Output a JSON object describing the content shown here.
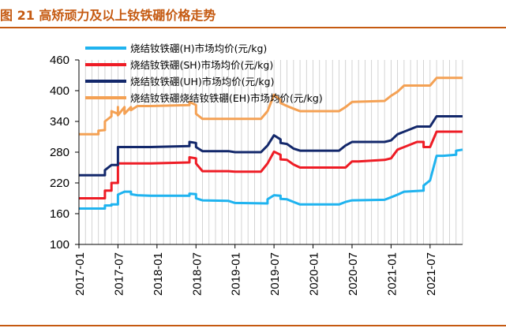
{
  "header": {
    "title": "图 21 高矫顽力及以上钕铁硼价格走势"
  },
  "chart_data": {
    "type": "line",
    "title": "图 21 高矫顽力及以上钕铁硼价格走势",
    "xlabel": "",
    "ylabel": "",
    "ylim": [
      100,
      460
    ],
    "yticks": [
      100,
      160,
      220,
      280,
      340,
      400,
      460
    ],
    "xlim": [
      "2017-01",
      "2021-12"
    ],
    "xticks": [
      "2017-01",
      "2017-07",
      "2018-01",
      "2018-07",
      "2019-01",
      "2019-07",
      "2020-01",
      "2020-07",
      "2021-01",
      "2021-07"
    ],
    "grid": "vertical",
    "legend_position": "top-left",
    "series": [
      {
        "name": "烧结钕铁硼(H)市场均价(元/kg)",
        "color": "#1fb3ef",
        "points": [
          [
            "2017-01",
            170
          ],
          [
            "2017-05",
            170
          ],
          [
            "2017-05",
            176
          ],
          [
            "2017-06",
            176
          ],
          [
            "2017-06",
            178
          ],
          [
            "2017-07",
            178
          ],
          [
            "2017-07",
            197
          ],
          [
            "2017-08",
            203
          ],
          [
            "2017-09",
            203
          ],
          [
            "2017-09",
            198
          ],
          [
            "2017-10",
            196
          ],
          [
            "2017-12",
            195
          ],
          [
            "2018-06",
            195
          ],
          [
            "2018-06",
            199
          ],
          [
            "2018-07",
            198
          ],
          [
            "2018-07",
            190
          ],
          [
            "2018-08",
            186
          ],
          [
            "2018-12",
            185
          ],
          [
            "2019-01",
            181
          ],
          [
            "2019-06",
            180
          ],
          [
            "2019-06",
            188
          ],
          [
            "2019-07",
            196
          ],
          [
            "2019-08",
            195
          ],
          [
            "2019-08",
            189
          ],
          [
            "2019-09",
            188
          ],
          [
            "2019-10",
            183
          ],
          [
            "2019-11",
            178
          ],
          [
            "2020-05",
            178
          ],
          [
            "2020-06",
            183
          ],
          [
            "2020-07",
            186
          ],
          [
            "2020-12",
            187
          ],
          [
            "2021-01",
            192
          ],
          [
            "2021-02",
            197
          ],
          [
            "2021-03",
            203
          ],
          [
            "2021-06",
            205
          ],
          [
            "2021-06",
            215
          ],
          [
            "2021-07",
            225
          ],
          [
            "2021-08",
            273
          ],
          [
            "2021-09",
            273
          ],
          [
            "2021-11",
            275
          ],
          [
            "2021-11",
            283
          ],
          [
            "2021-12",
            285
          ]
        ]
      },
      {
        "name": "烧结钕铁硼(SH)市场均价(元/kg)",
        "color": "#ee1c25",
        "points": [
          [
            "2017-01",
            190
          ],
          [
            "2017-05",
            190
          ],
          [
            "2017-05",
            205
          ],
          [
            "2017-06",
            205
          ],
          [
            "2017-06",
            220
          ],
          [
            "2017-07",
            220
          ],
          [
            "2017-07",
            258
          ],
          [
            "2017-09",
            258
          ],
          [
            "2017-12",
            258
          ],
          [
            "2018-06",
            260
          ],
          [
            "2018-06",
            270
          ],
          [
            "2018-07",
            268
          ],
          [
            "2018-07",
            258
          ],
          [
            "2018-08",
            243
          ],
          [
            "2018-12",
            243
          ],
          [
            "2019-01",
            242
          ],
          [
            "2019-05",
            242
          ],
          [
            "2019-06",
            258
          ],
          [
            "2019-07",
            281
          ],
          [
            "2019-08",
            275
          ],
          [
            "2019-08",
            266
          ],
          [
            "2019-09",
            265
          ],
          [
            "2019-10",
            256
          ],
          [
            "2019-11",
            250
          ],
          [
            "2020-06",
            250
          ],
          [
            "2020-07",
            262
          ],
          [
            "2020-08",
            262
          ],
          [
            "2020-12",
            265
          ],
          [
            "2021-01",
            268
          ],
          [
            "2021-02",
            285
          ],
          [
            "2021-05",
            300
          ],
          [
            "2021-06",
            300
          ],
          [
            "2021-06",
            290
          ],
          [
            "2021-07",
            290
          ],
          [
            "2021-08",
            320
          ],
          [
            "2021-12",
            320
          ]
        ]
      },
      {
        "name": "烧结钕铁硼(UH)市场均价(元/kg)",
        "color": "#13286b",
        "points": [
          [
            "2017-01",
            235
          ],
          [
            "2017-05",
            235
          ],
          [
            "2017-05",
            245
          ],
          [
            "2017-06",
            255
          ],
          [
            "2017-07",
            255
          ],
          [
            "2017-07",
            290
          ],
          [
            "2017-12",
            290
          ],
          [
            "2018-06",
            292
          ],
          [
            "2018-06",
            300
          ],
          [
            "2018-07",
            298
          ],
          [
            "2018-07",
            290
          ],
          [
            "2018-08",
            282
          ],
          [
            "2018-12",
            282
          ],
          [
            "2019-01",
            280
          ],
          [
            "2019-05",
            280
          ],
          [
            "2019-06",
            293
          ],
          [
            "2019-07",
            313
          ],
          [
            "2019-08",
            305
          ],
          [
            "2019-08",
            298
          ],
          [
            "2019-09",
            296
          ],
          [
            "2019-10",
            287
          ],
          [
            "2019-11",
            283
          ],
          [
            "2020-05",
            283
          ],
          [
            "2020-06",
            293
          ],
          [
            "2020-07",
            300
          ],
          [
            "2020-12",
            300
          ],
          [
            "2021-01",
            303
          ],
          [
            "2021-02",
            315
          ],
          [
            "2021-05",
            330
          ],
          [
            "2021-07",
            330
          ],
          [
            "2021-08",
            350
          ],
          [
            "2021-12",
            350
          ]
        ]
      },
      {
        "name": "烧结钕铁硼烧结钕铁硼(EH)市场均价(元/kg)",
        "color": "#f4a154",
        "points": [
          [
            "2017-01",
            315
          ],
          [
            "2017-04",
            315
          ],
          [
            "2017-04",
            322
          ],
          [
            "2017-05",
            323
          ],
          [
            "2017-05",
            332
          ],
          [
            "2017-05",
            340
          ],
          [
            "2017-06",
            350
          ],
          [
            "2017-06",
            360
          ],
          [
            "2017-07",
            355
          ],
          [
            "2017-07",
            368
          ],
          [
            "2017-07",
            352
          ],
          [
            "2017-08",
            368
          ],
          [
            "2017-08",
            355
          ],
          [
            "2017-09",
            368
          ],
          [
            "2017-09",
            362
          ],
          [
            "2017-10",
            370
          ],
          [
            "2017-12",
            370
          ],
          [
            "2018-06",
            372
          ],
          [
            "2018-06",
            378
          ],
          [
            "2018-07",
            372
          ],
          [
            "2018-07",
            355
          ],
          [
            "2018-08",
            345
          ],
          [
            "2018-12",
            345
          ],
          [
            "2019-01",
            345
          ],
          [
            "2019-05",
            345
          ],
          [
            "2019-06",
            360
          ],
          [
            "2019-07",
            392
          ],
          [
            "2019-08",
            382
          ],
          [
            "2019-08",
            376
          ],
          [
            "2019-09",
            370
          ],
          [
            "2019-10",
            365
          ],
          [
            "2019-11",
            360
          ],
          [
            "2020-05",
            360
          ],
          [
            "2020-06",
            368
          ],
          [
            "2020-07",
            378
          ],
          [
            "2020-12",
            380
          ],
          [
            "2021-01",
            390
          ],
          [
            "2021-02",
            398
          ],
          [
            "2021-03",
            410
          ],
          [
            "2021-07",
            410
          ],
          [
            "2021-08",
            425
          ],
          [
            "2021-12",
            425
          ]
        ]
      }
    ]
  }
}
